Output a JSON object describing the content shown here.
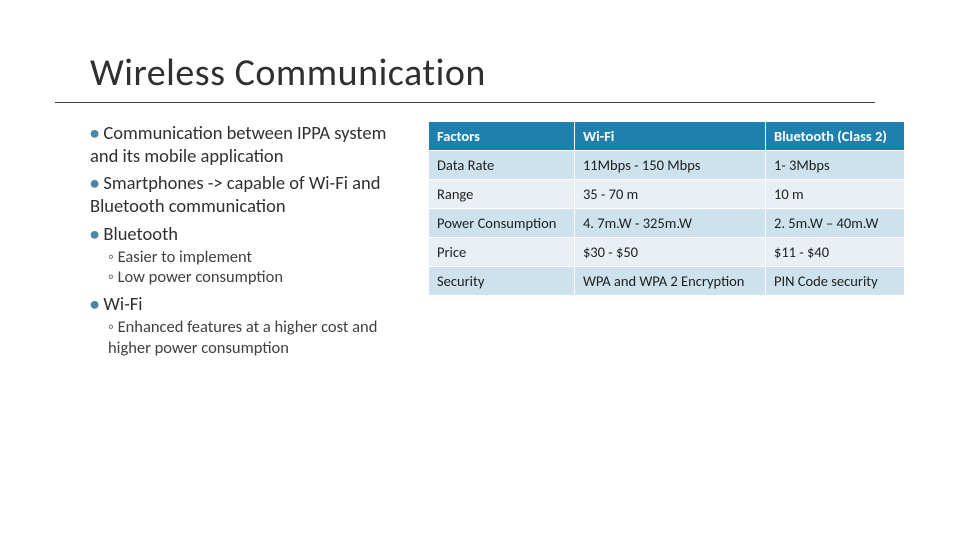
{
  "title": "Wireless Communication",
  "bullets": {
    "b1": "Communication between IPPA system and its mobile application",
    "b2": "Smartphones -> capable of Wi-Fi and Bluetooth communication",
    "b3": "Bluetooth",
    "b3s1": "Easier to implement",
    "b3s2": "Low power consumption",
    "b4": "Wi-Fi",
    "b4s1": "Enhanced features at a higher cost and higher power consumption"
  },
  "table": {
    "type": "table",
    "header_bg": "#1f80ad",
    "header_fg": "#ffffff",
    "band_a_bg": "#cde2ec",
    "band_b_bg": "#e8f0f5",
    "columns": [
      "Factors",
      "Wi-Fi",
      "Bluetooth (Class 2)"
    ],
    "rows": [
      [
        "Data Rate",
        "11Mbps - 150 Mbps",
        "1- 3Mbps"
      ],
      [
        "Range",
        "35 - 70 m",
        "10 m"
      ],
      [
        "Power Consumption",
        "4. 7m.W - 325m.W",
        "2. 5m.W – 40m.W"
      ],
      [
        "Price",
        "$30 - $50",
        "$11 - $40"
      ],
      [
        "Security",
        "WPA and WPA 2 Encryption",
        "PIN Code security"
      ]
    ]
  }
}
